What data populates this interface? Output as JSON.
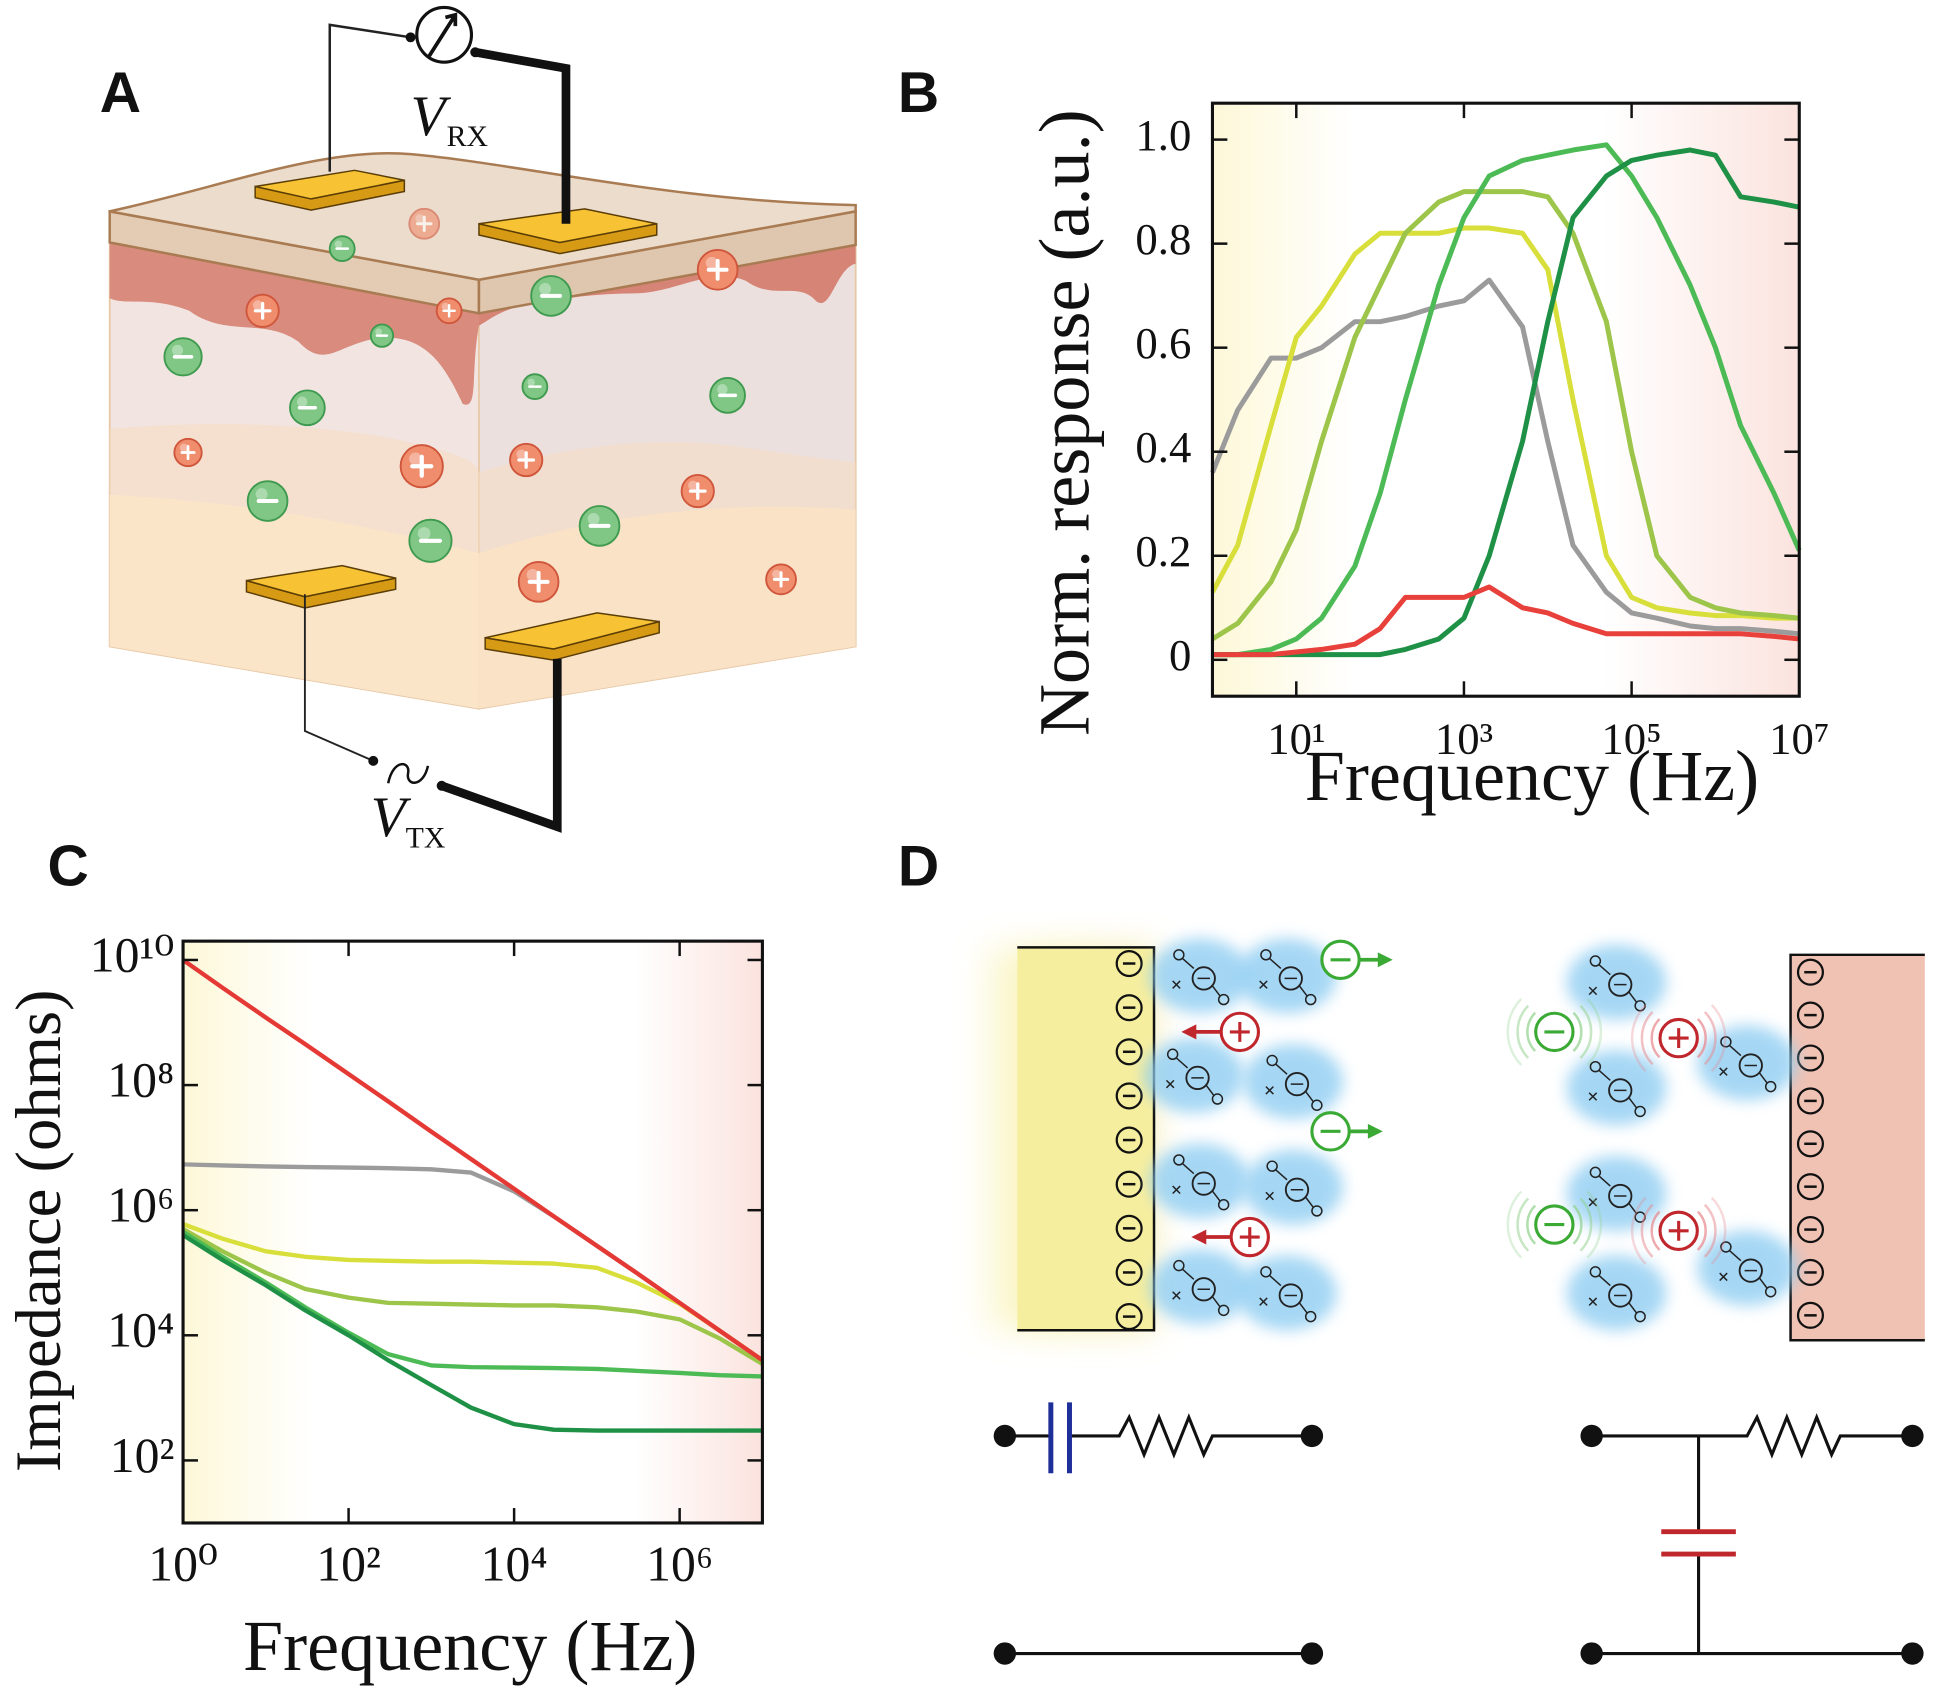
{
  "panel_labels": [
    "A",
    "B",
    "C",
    "D"
  ],
  "panel_a": {
    "receive_voltage": {
      "symbol": "V",
      "subscript": "RX"
    },
    "transmit_voltage": {
      "symbol": "V",
      "subscript": "TX"
    }
  },
  "chart_data": [
    {
      "type": "line",
      "xscale": "log",
      "x_label": "Frequency (Hz)",
      "y_label": "Norm. response (a.u.)",
      "x": [
        1,
        2,
        5,
        10,
        20,
        50,
        100,
        200,
        500,
        1000,
        2000,
        5000,
        10000,
        20000,
        50000,
        100000,
        200000,
        500000,
        1000000,
        2000000,
        5000000,
        10000000
      ],
      "xlim": [
        1,
        10000000
      ],
      "xticks": [
        {
          "value": 10,
          "label": "10¹"
        },
        {
          "value": 1000,
          "label": "10³"
        },
        {
          "value": 100000,
          "label": "10⁵"
        },
        {
          "value": 10000000,
          "label": "10⁷"
        }
      ],
      "ylim": [
        -0.07,
        1.07
      ],
      "yticks": [
        0,
        0.2,
        0.4,
        0.6,
        0.8,
        {
          "value": 1,
          "label": "1.0"
        }
      ],
      "series": [
        {
          "color": "#9b9b9b",
          "values": [
            0.36,
            0.48,
            0.58,
            0.58,
            0.6,
            0.65,
            0.65,
            0.66,
            0.68,
            0.69,
            0.73,
            0.64,
            0.42,
            0.22,
            0.13,
            0.09,
            0.08,
            0.065,
            0.06,
            0.06,
            0.055,
            0.05
          ]
        },
        {
          "color": "#d8de3a",
          "values": [
            0.13,
            0.22,
            0.45,
            0.62,
            0.68,
            0.78,
            0.82,
            0.82,
            0.82,
            0.83,
            0.83,
            0.82,
            0.75,
            0.5,
            0.2,
            0.12,
            0.1,
            0.09,
            0.085,
            0.085,
            0.08,
            0.08
          ]
        },
        {
          "color": "#9cc54a",
          "values": [
            0.04,
            0.07,
            0.15,
            0.25,
            0.42,
            0.62,
            0.72,
            0.82,
            0.88,
            0.9,
            0.9,
            0.9,
            0.89,
            0.82,
            0.65,
            0.4,
            0.2,
            0.12,
            0.1,
            0.09,
            0.085,
            0.08
          ]
        },
        {
          "color": "#4dbb55",
          "values": [
            0.01,
            0.01,
            0.02,
            0.04,
            0.08,
            0.18,
            0.32,
            0.5,
            0.72,
            0.85,
            0.93,
            0.96,
            0.97,
            0.98,
            0.99,
            0.93,
            0.85,
            0.72,
            0.6,
            0.45,
            0.32,
            0.21
          ]
        },
        {
          "color": "#1f9146",
          "values": [
            0.01,
            0.01,
            0.01,
            0.01,
            0.01,
            0.01,
            0.01,
            0.02,
            0.04,
            0.08,
            0.2,
            0.42,
            0.65,
            0.85,
            0.93,
            0.96,
            0.97,
            0.98,
            0.97,
            0.89,
            0.88,
            0.87
          ]
        },
        {
          "color": "#e8413c",
          "values": [
            0.01,
            0.01,
            0.01,
            0.015,
            0.02,
            0.03,
            0.06,
            0.12,
            0.12,
            0.12,
            0.14,
            0.1,
            0.09,
            0.07,
            0.05,
            0.05,
            0.05,
            0.05,
            0.05,
            0.05,
            0.045,
            0.04
          ]
        }
      ]
    },
    {
      "type": "line",
      "xscale": "log",
      "yscale": "log",
      "x_label": "Frequency (Hz)",
      "y_label": "Impedance (ohms)",
      "x": [
        1,
        3,
        10,
        30,
        100,
        300,
        1000,
        3000,
        10000,
        30000,
        100000,
        300000,
        1000000,
        3000000,
        10000000
      ],
      "xlim": [
        1,
        10000000
      ],
      "xticks": [
        {
          "value": 1,
          "label": "10⁰"
        },
        {
          "value": 100,
          "label": "10²"
        },
        {
          "value": 10000,
          "label": "10⁴"
        },
        {
          "value": 1000000,
          "label": "10⁶"
        }
      ],
      "ylim": [
        10,
        20000000000
      ],
      "yticks": [
        {
          "value": 100,
          "label": "10²"
        },
        {
          "value": 10000,
          "label": "10⁴"
        },
        {
          "value": 1000000,
          "label": "10⁶"
        },
        {
          "value": 100000000,
          "label": "10⁸"
        },
        {
          "value": 10000000000,
          "label": "10¹⁰"
        }
      ],
      "series": [
        {
          "color": "#9b9b9b",
          "values": [
            5400000,
            5200000,
            5000000,
            4900000,
            4800000,
            4700000,
            4500000,
            4000000,
            2000000,
            800000,
            270000,
            100000,
            33000,
            12000,
            4000
          ]
        },
        {
          "color": "#d8de3a",
          "values": [
            600000,
            350000,
            220000,
            180000,
            160000,
            155000,
            150000,
            150000,
            145000,
            140000,
            120000,
            70000,
            32000,
            12000,
            4000
          ]
        },
        {
          "color": "#9cc54a",
          "values": [
            500000,
            220000,
            100000,
            55000,
            40000,
            33000,
            32000,
            31000,
            30000,
            30000,
            28000,
            24000,
            18000,
            9000,
            3500
          ]
        },
        {
          "color": "#4dbb55",
          "values": [
            450000,
            180000,
            70000,
            28000,
            11000,
            5000,
            3300,
            3100,
            3050,
            3000,
            2900,
            2700,
            2500,
            2300,
            2200
          ]
        },
        {
          "color": "#1f9146",
          "values": [
            400000,
            160000,
            63000,
            25000,
            10000,
            4000,
            1600,
            700,
            380,
            310,
            300,
            300,
            300,
            300,
            300
          ]
        },
        {
          "color": "#e53935",
          "values": [
            10000000000,
            3600000000,
            1200000000,
            450000000,
            150000000,
            55000000,
            18000000,
            6600000,
            2200000,
            800000,
            270000,
            100000,
            33000,
            12000,
            4000
          ]
        }
      ]
    }
  ]
}
